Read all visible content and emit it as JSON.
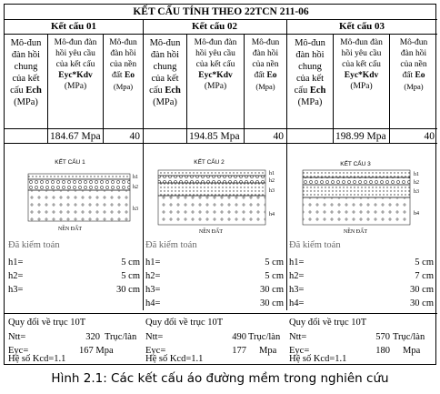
{
  "title": "KẾT CẤU TÍNH THEO 22TCN 211-06",
  "structures": [
    {
      "name": "Kết cấu 01",
      "ech_value": "184.67 Mpa",
      "eo_value": "40",
      "diagram": {
        "title": "KẾT CẤU 1",
        "layers": [
          "h1",
          "h2",
          "h3"
        ],
        "ground": "NỀN ĐẤT"
      },
      "checked_label": "Đã kiểm toán",
      "thickness": [
        {
          "label": "h1=",
          "value": "5 cm"
        },
        {
          "label": "h2=",
          "value": "5 cm"
        },
        {
          "label": "h3=",
          "value": "30 cm"
        }
      ],
      "conv_title": "Quy đổi về trục 10T",
      "ntt_label": "Ntt=",
      "ntt_value": "320",
      "ntt_unit": "Trục/làn",
      "eyc_label": "Eyc=",
      "eyc_value": "167 Mpa",
      "kcd": "Hệ số Kcd=1.1"
    },
    {
      "name": "Kết cấu 02",
      "ech_value": "194.85 Mpa",
      "eo_value": "40",
      "diagram": {
        "title": "KẾT CẤU 2",
        "layers": [
          "h1",
          "h2",
          "h3",
          "h4"
        ],
        "ground": "NỀN ĐẤT"
      },
      "checked_label": "Đã kiểm toán",
      "thickness": [
        {
          "label": "h1=",
          "value": "5 cm"
        },
        {
          "label": "h2=",
          "value": "5 cm"
        },
        {
          "label": "h3=",
          "value": "30 cm"
        },
        {
          "label": "h4=",
          "value": "30 cm"
        }
      ],
      "conv_title": "Quy đổi về trục 10T",
      "ntt_label": "Ntt=",
      "ntt_value": "490",
      "ntt_unit": "Trục/làn",
      "eyc_label": "Eyc=",
      "eyc_value": "177",
      "eyc_unit": "Mpa",
      "kcd": "Hệ số Kcd=1.1"
    },
    {
      "name": "Kết cấu 03",
      "ech_value": "198.99 Mpa",
      "eo_value": "40",
      "diagram": {
        "title": "KẾT CẤU 3",
        "layers": [
          "h1",
          "h2",
          "h3",
          "h4"
        ],
        "ground": "NỀN ĐẤT"
      },
      "checked_label": "Đã kiểm toán",
      "thickness": [
        {
          "label": "h1=",
          "value": "5 cm"
        },
        {
          "label": "h2=",
          "value": "7 cm"
        },
        {
          "label": "h3=",
          "value": "30 cm"
        },
        {
          "label": "h4=",
          "value": "30 cm"
        }
      ],
      "conv_title": "Quy đổi về trục 10T",
      "ntt_label": "Ntt=",
      "ntt_value": "570",
      "ntt_unit": "Trục/làn",
      "eyc_label": "Eyc=",
      "eyc_value": "180",
      "eyc_unit": "Mpa",
      "kcd": "Hệ số Kcd=1.1"
    }
  ],
  "headers": {
    "ech": [
      "Mô-đun",
      "đàn hồi",
      "chung",
      "của kết",
      "cấu",
      "Ech",
      "(MPa)"
    ],
    "eyc": [
      "Mô-đun đàn",
      "hồi yêu cầu",
      "của kết cấu",
      "Eyc*Kdv",
      "(MPa)"
    ],
    "eo": [
      "Mô-đun",
      "đàn hồi",
      "của nền",
      "đất",
      "Eo",
      "(Mpa)"
    ]
  },
  "caption": "Hình 2.1: Các kết cấu áo đường mềm trong nghiên cứu"
}
